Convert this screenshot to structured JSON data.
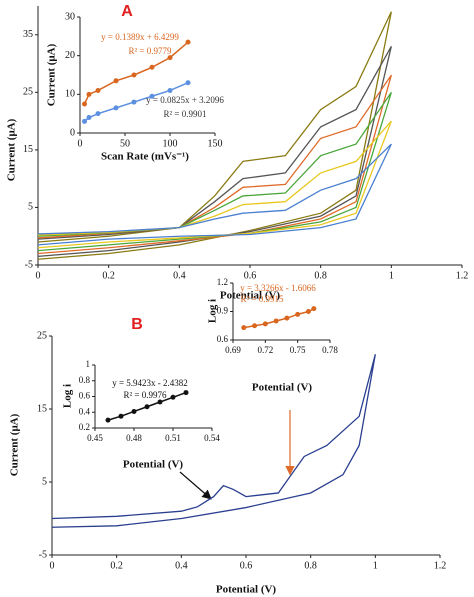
{
  "chart_data": [
    {
      "type": "line",
      "panel_label": "A",
      "panel_color": "#e02020",
      "x_label": "Potential (V)",
      "y_label": "Current  (μA)",
      "x": [
        0,
        0.2,
        0.4,
        0.5,
        0.58,
        0.7,
        0.8,
        0.9,
        1.0,
        0.9,
        0.8,
        0.6,
        0.4,
        0.2,
        0
      ],
      "xlim": [
        0,
        1.2
      ],
      "xticks": [
        0,
        0.2,
        0.4,
        0.6,
        0.8,
        1,
        1.2
      ],
      "ylim": [
        -5,
        40
      ],
      "yticks": [
        -5,
        5,
        15,
        25,
        35
      ],
      "series": [
        {
          "color": "#8a7a12",
          "values": [
            -1,
            0,
            1.5,
            7,
            13,
            14,
            22,
            26,
            39,
            8,
            4,
            1,
            -1.5,
            -3,
            -4
          ]
        },
        {
          "color": "#555555",
          "values": [
            -0.5,
            0.3,
            1.5,
            6,
            10,
            11,
            19,
            22,
            33,
            7,
            3.5,
            0.8,
            -1,
            -2.5,
            -3.5
          ]
        },
        {
          "color": "#e06a2a",
          "values": [
            -0.3,
            0.5,
            1.5,
            5,
            8.5,
            9,
            17,
            19,
            28,
            6,
            3,
            0.5,
            -0.8,
            -2,
            -3
          ]
        },
        {
          "color": "#4aa63a",
          "values": [
            0,
            0.6,
            1.5,
            4.5,
            7,
            7.5,
            14,
            16,
            25,
            5,
            2.5,
            0.5,
            -0.5,
            -1.5,
            -2.5
          ]
        },
        {
          "color": "#e8c820",
          "values": [
            0.2,
            0.7,
            1.5,
            3.5,
            5.5,
            6,
            11,
            13,
            20,
            4,
            2,
            0.5,
            -0.3,
            -1,
            -2
          ]
        },
        {
          "color": "#4a7fd0",
          "values": [
            0.4,
            0.8,
            1.5,
            3,
            4,
            4.5,
            8,
            10,
            16,
            3,
            1.5,
            0.3,
            0,
            -0.5,
            -1.5
          ]
        }
      ]
    },
    {
      "type": "scatter",
      "x_label": "Scan Rate (mVs⁻¹)",
      "y_label": "Current (μA)",
      "x": [
        5,
        10,
        20,
        40,
        60,
        80,
        100,
        120
      ],
      "xlim": [
        0,
        150
      ],
      "xticks": [
        0,
        50,
        100,
        150
      ],
      "ylim": [
        0,
        30
      ],
      "yticks": [
        0,
        10,
        20,
        30
      ],
      "series": [
        {
          "color": "#d9661e",
          "values": [
            7.5,
            10,
            11,
            13.5,
            15,
            17,
            19.5,
            23.5
          ]
        },
        {
          "color": "#5b8fe0",
          "values": [
            3,
            4,
            5,
            6.5,
            8,
            9.5,
            11,
            13
          ]
        }
      ],
      "annotations": [
        {
          "text": "y = 0.1389x + 6.4299",
          "color": "#d9661e"
        },
        {
          "text": "R² = 0.9779",
          "color": "#d9661e"
        },
        {
          "text": "y = 0.0825x + 3.2096",
          "color": "#333333"
        },
        {
          "text": "R² = 0.9901",
          "color": "#333333"
        }
      ]
    },
    {
      "type": "line",
      "panel_label": "B",
      "panel_color": "#e02020",
      "x_label": "Potential (V)",
      "y_label": "Current  (μA)",
      "x": [
        0,
        0.2,
        0.4,
        0.45,
        0.5,
        0.53,
        0.56,
        0.6,
        0.7,
        0.78,
        0.85,
        0.95,
        1.0,
        0.95,
        0.9,
        0.8,
        0.6,
        0.4,
        0.2,
        0
      ],
      "xlim": [
        0,
        1.2
      ],
      "xticks": [
        0,
        0.2,
        0.4,
        0.6,
        0.8,
        1,
        1.2
      ],
      "ylim": [
        -5,
        25
      ],
      "yticks": [
        -5,
        5,
        15,
        25
      ],
      "series": [
        {
          "color": "#2a3f8f",
          "values": [
            0,
            0.3,
            1,
            1.6,
            3,
            4.5,
            4,
            3,
            3.5,
            8.5,
            10,
            14,
            22.5,
            10,
            6,
            3.5,
            1.5,
            0,
            -1,
            -1.2
          ]
        }
      ]
    },
    {
      "type": "scatter",
      "x_label": "Potential (V)",
      "y_label": "Log i",
      "x": [
        0.7,
        0.71,
        0.72,
        0.73,
        0.74,
        0.75,
        0.76,
        0.765
      ],
      "xlim": [
        0.69,
        0.78
      ],
      "xticks": [
        0.69,
        0.72,
        0.75,
        0.78
      ],
      "ylim": [
        0.6,
        1.2
      ],
      "yticks": [
        0.6,
        0.9,
        1.2
      ],
      "series": [
        {
          "color": "#d9661e",
          "values": [
            0.73,
            0.75,
            0.77,
            0.8,
            0.83,
            0.87,
            0.9,
            0.93
          ]
        }
      ],
      "annotations": [
        {
          "text": "y = 3.3266x - 1.6066",
          "color": "#d9661e"
        },
        {
          "text": "R² = 0.9915",
          "color": "#d9661e"
        }
      ]
    },
    {
      "type": "scatter",
      "x_label": "Potential (V)",
      "y_label": "Log i",
      "x": [
        0.46,
        0.47,
        0.48,
        0.49,
        0.5,
        0.51,
        0.52
      ],
      "xlim": [
        0.45,
        0.54
      ],
      "xticks": [
        0.45,
        0.48,
        0.51,
        0.54
      ],
      "ylim": [
        0.2,
        1
      ],
      "yticks": [
        0.2,
        0.4,
        0.6,
        0.8,
        1
      ],
      "series": [
        {
          "color": "#111111",
          "values": [
            0.3,
            0.35,
            0.41,
            0.47,
            0.53,
            0.59,
            0.65
          ]
        }
      ],
      "annotations": [
        {
          "text": "y = 5.9423x - 2.4382",
          "color": "#111111"
        },
        {
          "text": "R² = 0.9976",
          "color": "#111111"
        }
      ]
    }
  ]
}
